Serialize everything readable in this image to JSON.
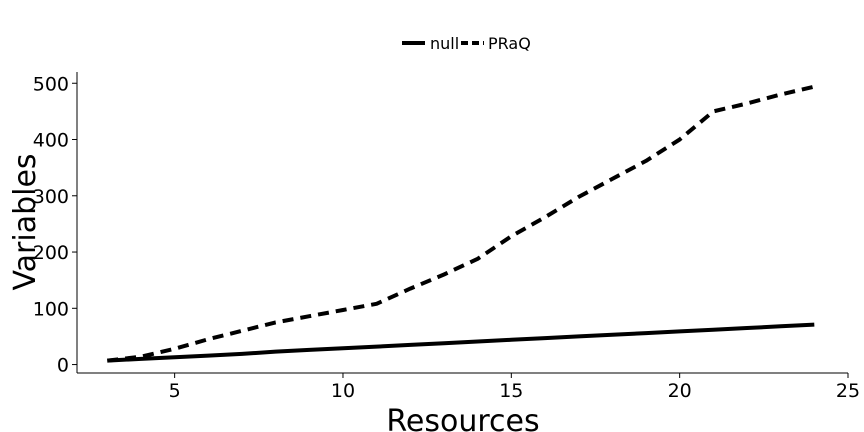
{
  "chart_data": {
    "type": "line",
    "xlabel": "Resources",
    "ylabel": "Variables",
    "xlim": [
      2.1,
      25
    ],
    "ylim": [
      -15,
      520
    ],
    "xticks": [
      5,
      10,
      15,
      20,
      25
    ],
    "yticks": [
      0,
      100,
      200,
      300,
      400,
      500
    ],
    "grid": false,
    "legend_position": "top",
    "series": [
      {
        "name": "null",
        "style": "solid",
        "color": "#000000",
        "x": [
          3,
          4,
          5,
          6,
          7,
          8,
          9,
          10,
          11,
          12,
          13,
          14,
          15,
          16,
          17,
          18,
          19,
          20,
          21,
          22,
          23,
          24
        ],
        "y": [
          7,
          10,
          13,
          16,
          19,
          23,
          26,
          29,
          32,
          35,
          38,
          41,
          44,
          47,
          50,
          53,
          56,
          59,
          62,
          65,
          68,
          71
        ]
      },
      {
        "name": "PRaQ",
        "style": "dashed",
        "color": "#000000",
        "x": [
          3,
          4,
          5,
          6,
          7,
          8,
          9,
          10,
          11,
          12,
          13,
          14,
          15,
          16,
          17,
          18,
          19,
          20,
          21,
          22,
          23,
          24
        ],
        "y": [
          7,
          14,
          28,
          45,
          60,
          75,
          86,
          97,
          108,
          135,
          160,
          188,
          228,
          262,
          298,
          330,
          362,
          400,
          450,
          464,
          480,
          494
        ]
      }
    ]
  }
}
